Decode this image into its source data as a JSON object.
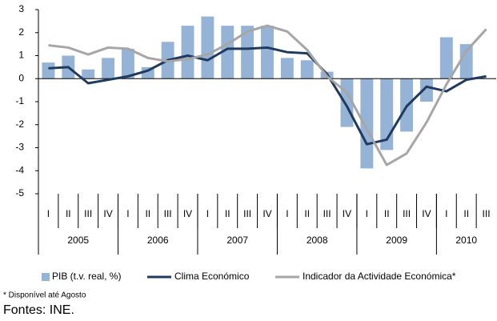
{
  "chart_data": {
    "type": "bar_line",
    "categories": [
      "I",
      "II",
      "III",
      "IV",
      "I",
      "II",
      "III",
      "IV",
      "I",
      "II",
      "III",
      "IV",
      "I",
      "II",
      "III",
      "IV",
      "I",
      "II",
      "III",
      "IV",
      "I",
      "II",
      "III"
    ],
    "groups": [
      {
        "label": "2005",
        "size": 4
      },
      {
        "label": "2006",
        "size": 4
      },
      {
        "label": "2007",
        "size": 4
      },
      {
        "label": "2008",
        "size": 4
      },
      {
        "label": "2009",
        "size": 4
      },
      {
        "label": "2010",
        "size": 3
      }
    ],
    "series": [
      {
        "name": "PIB (t.v. real, %)",
        "kind": "bar",
        "color": "#95b3d7",
        "values": [
          0.7,
          1.0,
          0.4,
          0.9,
          1.3,
          0.5,
          1.6,
          2.3,
          2.7,
          2.3,
          2.3,
          2.3,
          0.9,
          0.8,
          0.3,
          -2.1,
          -3.9,
          -3.1,
          -2.3,
          -1.0,
          1.8,
          1.5,
          null
        ]
      },
      {
        "name": "Clima Económico",
        "kind": "line",
        "color": "#1f3a5f",
        "values": [
          0.45,
          0.5,
          -0.2,
          -0.05,
          0.1,
          0.35,
          0.8,
          1.0,
          0.8,
          1.3,
          1.3,
          1.35,
          1.15,
          1.1,
          0.2,
          -1.2,
          -2.85,
          -2.65,
          -1.2,
          -0.35,
          -0.55,
          -0.05,
          0.1
        ]
      },
      {
        "name": "Indicador da Actividade Económica*",
        "kind": "line",
        "color": "#a6a6a6",
        "values": [
          1.45,
          1.35,
          1.05,
          1.35,
          1.3,
          0.9,
          0.75,
          0.85,
          1.05,
          1.5,
          2.05,
          2.3,
          2.05,
          1.25,
          0.1,
          -0.6,
          -2.2,
          -3.75,
          -3.25,
          -1.9,
          -0.25,
          1.2,
          2.15
        ]
      }
    ],
    "ylim": [
      -5,
      3
    ],
    "yticks": [
      -5,
      -4,
      -3,
      -2,
      -1,
      0,
      1,
      2,
      3
    ],
    "note": "* Disponível até Agosto",
    "source": "Fontes: INE."
  }
}
